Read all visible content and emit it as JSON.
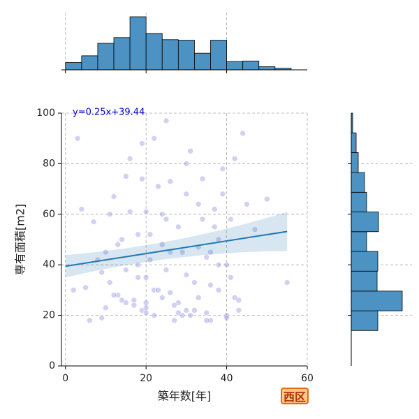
{
  "chart_data": [
    {
      "type": "scatter",
      "xlabel": "築年数[年]",
      "ylabel": "専有面積[m2]",
      "xlim": [
        -1,
        60
      ],
      "ylim": [
        0,
        100
      ],
      "xticks": [
        0,
        20,
        40,
        60
      ],
      "yticks": [
        0,
        20,
        40,
        60,
        80,
        100
      ],
      "grid": true,
      "color": "#7b7bd6",
      "x": [
        3,
        5,
        7,
        9,
        10,
        11,
        12,
        13,
        14,
        15,
        16,
        17,
        18,
        19,
        19,
        20,
        20,
        21,
        22,
        23,
        24,
        25,
        26,
        27,
        28,
        29,
        30,
        31,
        32,
        33,
        34,
        35,
        36,
        37,
        38,
        39,
        40,
        41,
        42,
        43,
        44,
        45,
        47,
        50,
        55,
        2,
        4,
        8,
        10,
        12,
        14,
        16,
        18,
        20,
        22,
        24,
        26,
        28,
        30,
        32,
        34,
        36,
        38,
        40,
        42,
        6,
        9,
        13,
        17,
        19,
        21,
        23,
        25,
        27,
        29,
        31,
        33,
        35,
        37,
        39,
        41,
        43,
        11,
        15,
        18,
        20,
        22,
        24,
        26,
        28,
        30,
        33,
        36,
        38,
        15,
        20,
        25,
        30,
        35,
        40
      ],
      "y": [
        90,
        31,
        57,
        19,
        45,
        33,
        67,
        28,
        26,
        38,
        61,
        24,
        52,
        22,
        88,
        25,
        35,
        42,
        20,
        71,
        60,
        97,
        29,
        18,
        55,
        20,
        22,
        85,
        33,
        47,
        74,
        21,
        18,
        62,
        40,
        68,
        20,
        58,
        82,
        26,
        92,
        64,
        54,
        66,
        33,
        30,
        62,
        42,
        23,
        28,
        50,
        82,
        35,
        61,
        30,
        48,
        73,
        25,
        68,
        22,
        58,
        45,
        30,
        40,
        27,
        18,
        37,
        48,
        26,
        74,
        52,
        30,
        38,
        24,
        45,
        20,
        27,
        18,
        55,
        78,
        35,
        22,
        60,
        25,
        40,
        23,
        90,
        27,
        45,
        21,
        36,
        64,
        32,
        50,
        75,
        21,
        58,
        80,
        43,
        19
      ],
      "regression": {
        "label": "y=0.25x+39.44",
        "slope": 0.25,
        "intercept": 39.44,
        "x": [
          0,
          55
        ],
        "color": "#1f77b4"
      },
      "annotation": "西区"
    },
    {
      "type": "histogram",
      "bins": [
        0,
        4,
        8,
        12,
        16,
        20,
        24,
        28,
        32,
        36,
        40,
        44,
        48,
        52,
        56
      ],
      "values": [
        14,
        27,
        51,
        62,
        102,
        70,
        58,
        57,
        32,
        57,
        16,
        17,
        6,
        3
      ],
      "xlim": [
        -1,
        60
      ],
      "ylim": [
        0,
        102
      ],
      "xticks": [
        0,
        20,
        40
      ],
      "grid": true,
      "color": "#4c92c3"
    },
    {
      "type": "histogram",
      "orientation": "horizontal",
      "bins": [
        14,
        21.8,
        29.6,
        37.5,
        45.3,
        53.1,
        60.9,
        68.7,
        76.5,
        84.4,
        92.2,
        100
      ],
      "values": [
        38,
        73,
        37,
        38,
        22,
        39,
        22,
        19,
        10,
        7,
        2
      ],
      "ylim": [
        0,
        100
      ],
      "xlim": [
        0,
        73
      ],
      "yticks": [
        20,
        40,
        60,
        80
      ],
      "grid": true,
      "color": "#4c92c3"
    }
  ]
}
